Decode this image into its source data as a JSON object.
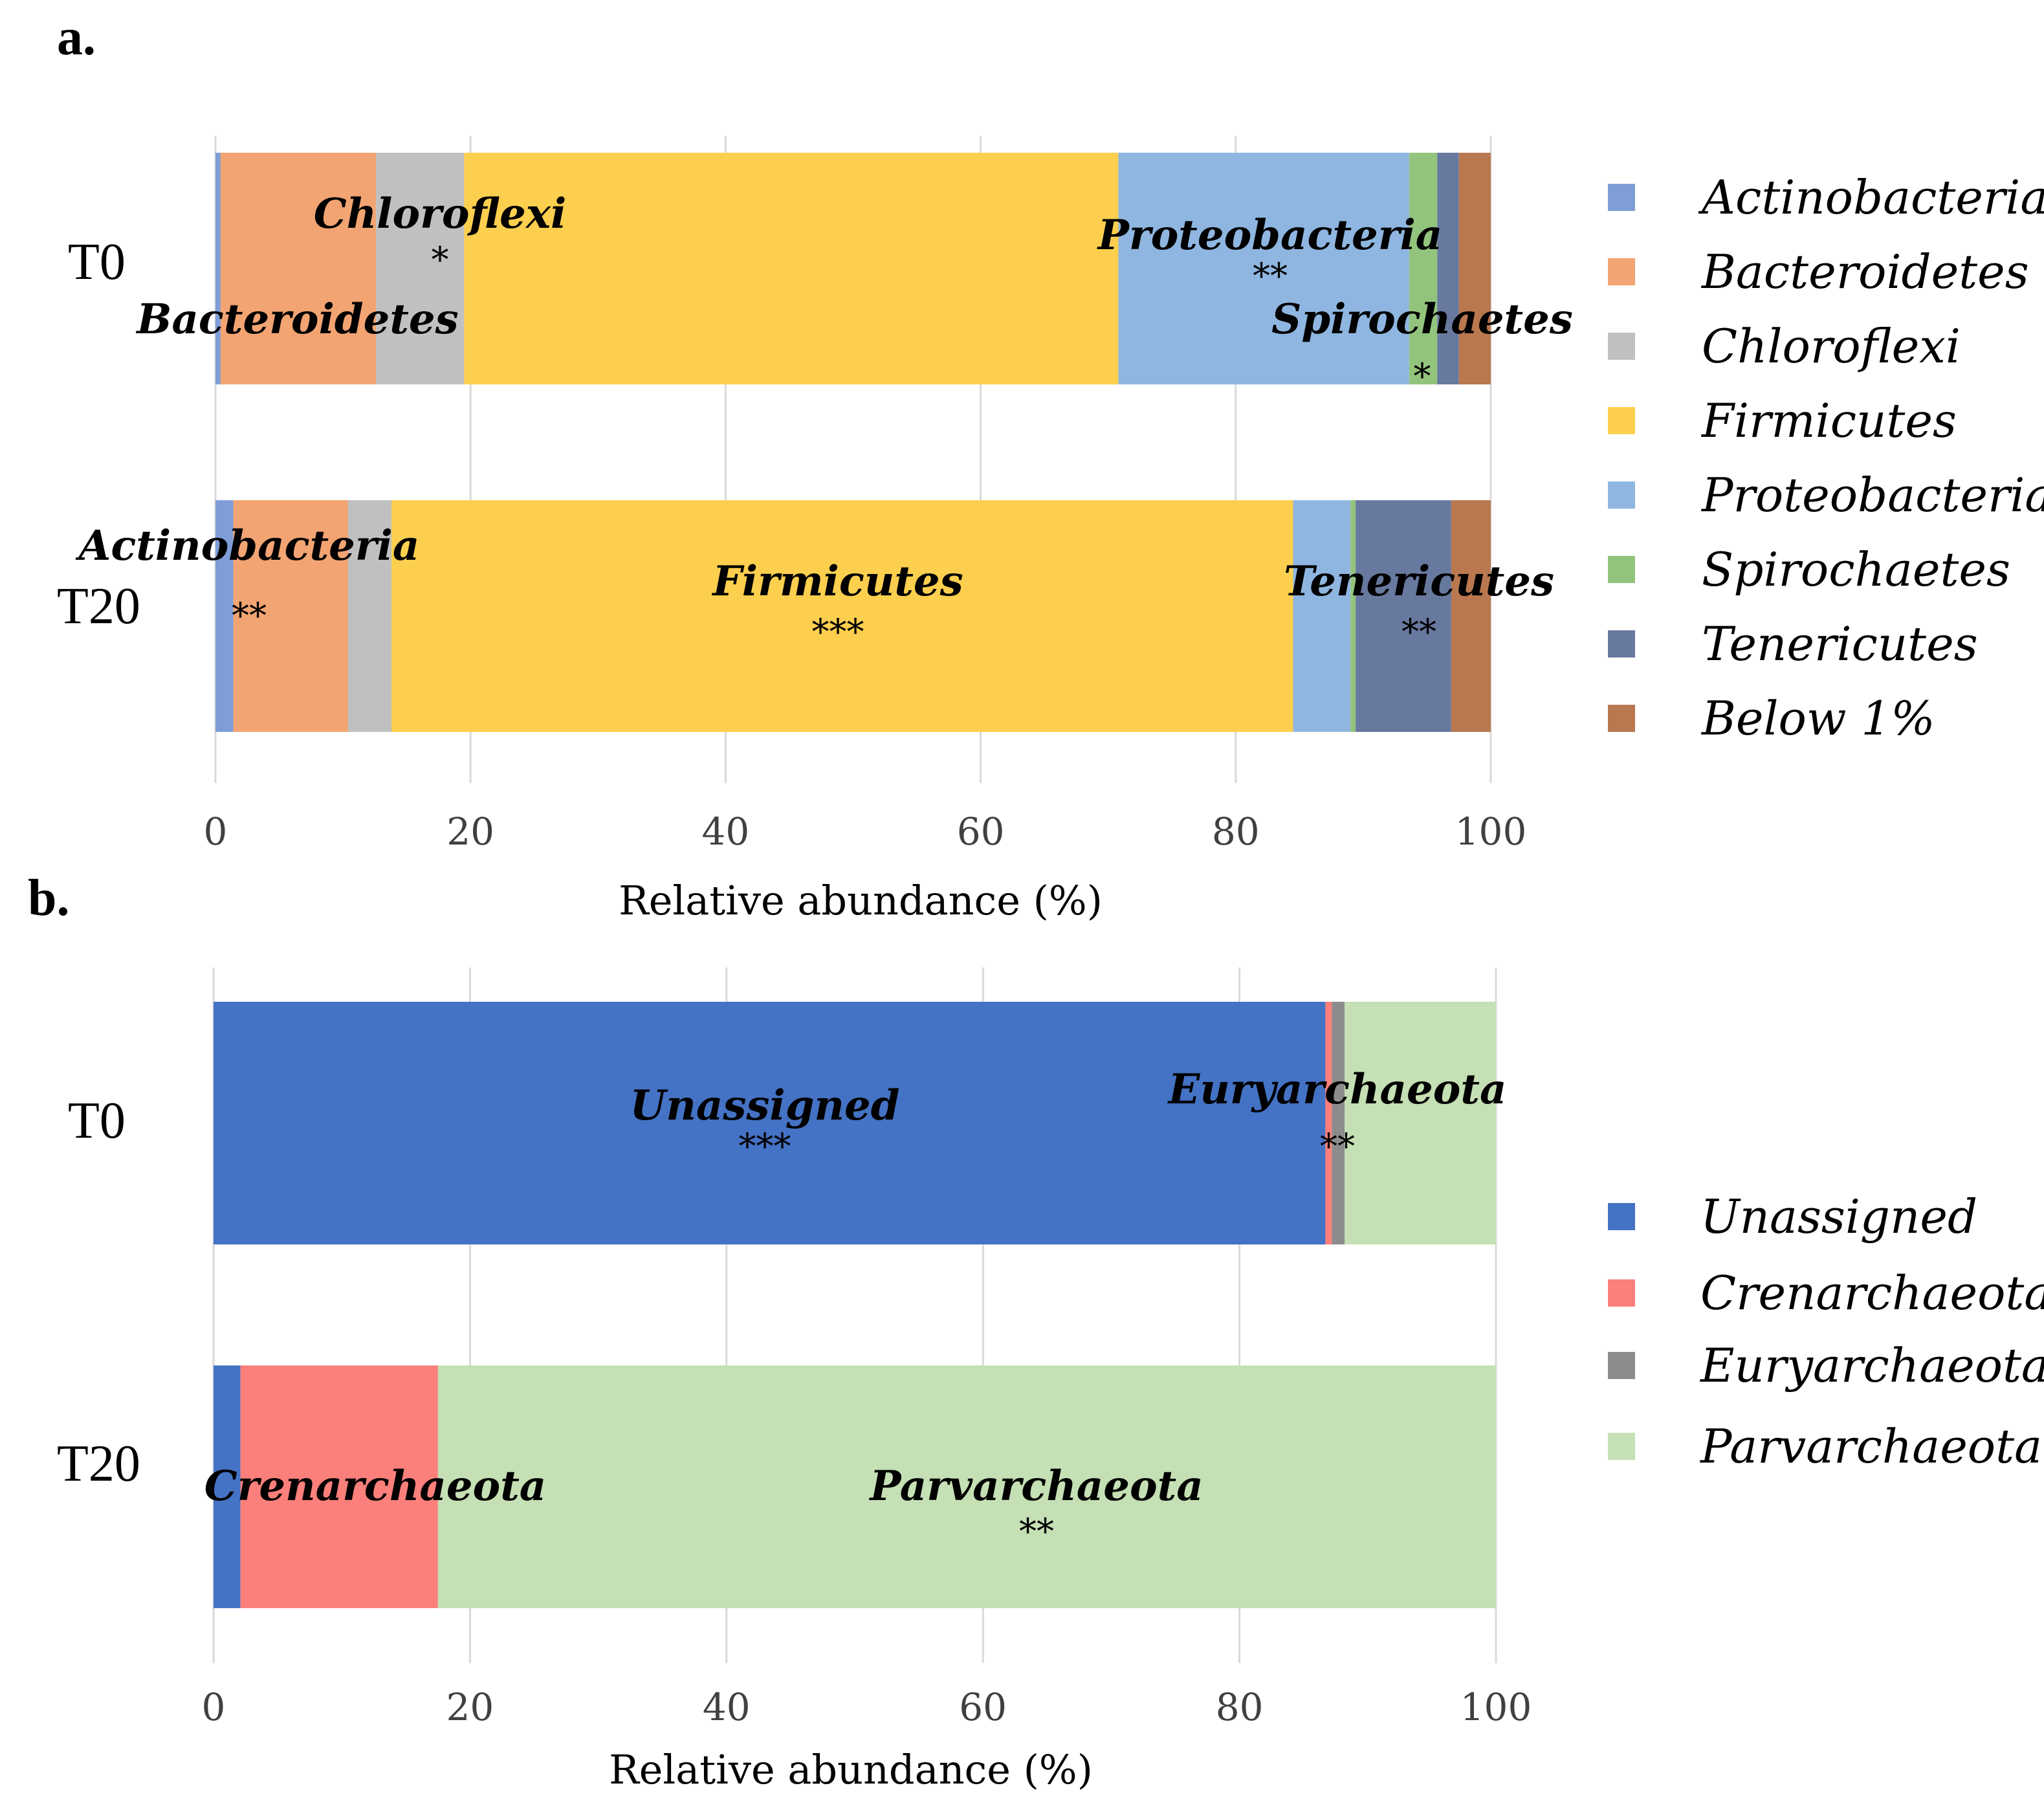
{
  "chart_data": [
    {
      "panel": "a.",
      "type": "bar",
      "orientation": "horizontal",
      "stacked": true,
      "categories": [
        "T0",
        "T20"
      ],
      "xlabel": "Relative abundance (%)",
      "xlim": [
        0,
        100
      ],
      "xticks": [
        "0",
        "20",
        "40",
        "60",
        "80",
        "100"
      ],
      "grid": true,
      "legend_position": "right",
      "series": [
        {
          "name": "Actinobacteria",
          "color": "#7f9ed8",
          "values": [
            0.4,
            1.4
          ]
        },
        {
          "name": "Bacteroidetes",
          "color": "#f2a472",
          "values": [
            12.2,
            9.0
          ]
        },
        {
          "name": "Chloroflexi",
          "color": "#c0c0c0",
          "values": [
            6.9,
            3.4
          ]
        },
        {
          "name": "Firmicutes",
          "color": "#fdcf4e",
          "values": [
            51.3,
            70.7
          ]
        },
        {
          "name": "Proteobacteria",
          "color": "#8fb6e0",
          "values": [
            22.8,
            4.5
          ]
        },
        {
          "name": "Spirochaetes",
          "color": "#93c47d",
          "values": [
            2.2,
            0.4
          ]
        },
        {
          "name": "Tenericutes",
          "color": "#68799f",
          "values": [
            1.7,
            7.5
          ]
        },
        {
          "name": "Below 1%",
          "color": "#b9784f",
          "values": [
            2.5,
            3.1
          ]
        }
      ],
      "annotations": [
        {
          "category": "T0",
          "name": "Chloroflexi",
          "stars": "*"
        },
        {
          "category": "T0",
          "name": "Bacteroidetes",
          "stars": ""
        },
        {
          "category": "T0",
          "name": "Proteobacteria",
          "stars": "**"
        },
        {
          "category": "T0",
          "name": "Spirochaetes",
          "stars": "*"
        },
        {
          "category": "T20",
          "name": "Actinobacteria",
          "stars": "**"
        },
        {
          "category": "T20",
          "name": "Firmicutes",
          "stars": "***"
        },
        {
          "category": "T20",
          "name": "Tenericutes",
          "stars": "**"
        }
      ]
    },
    {
      "panel": "b.",
      "type": "bar",
      "orientation": "horizontal",
      "stacked": true,
      "categories": [
        "T0",
        "T20"
      ],
      "xlabel": "Relative abundance (%)",
      "xlim": [
        0,
        100
      ],
      "xticks": [
        "0",
        "20",
        "40",
        "60",
        "80",
        "100"
      ],
      "grid": true,
      "legend_position": "right",
      "series": [
        {
          "name": "Unassigned",
          "color": "#4472c4",
          "values": [
            86.7,
            2.1
          ]
        },
        {
          "name": "Crenarchaeota",
          "color": "#fb7f7a",
          "values": [
            0.5,
            15.4
          ]
        },
        {
          "name": "Euryarchaeota",
          "color": "#8c8c8c",
          "values": [
            1.0,
            0.0
          ]
        },
        {
          "name": "Parvarchaeota",
          "color": "#c5e0b4",
          "values": [
            11.8,
            82.5
          ]
        }
      ],
      "annotations": [
        {
          "category": "T0",
          "name": "Unassigned",
          "stars": "***"
        },
        {
          "category": "T0",
          "name": "Euryarchaeota",
          "stars": "**"
        },
        {
          "category": "T20",
          "name": "Crenarchaeota",
          "stars": ""
        },
        {
          "category": "T20",
          "name": "Parvarchaeota",
          "stars": "**"
        }
      ]
    }
  ]
}
